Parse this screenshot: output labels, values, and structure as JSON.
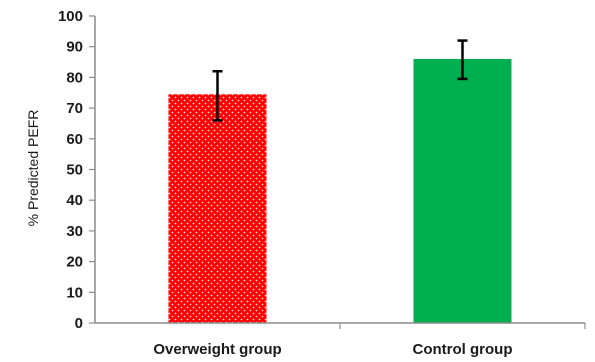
{
  "chart_data": {
    "type": "bar",
    "categories": [
      "Overweight group",
      "Control group"
    ],
    "values": [
      74.5,
      86
    ],
    "error_low": [
      66,
      79.5
    ],
    "error_high": [
      82,
      92
    ],
    "ylabel": "% Predicted PEFR",
    "xlabel": "",
    "ylim": [
      0,
      100
    ],
    "yticks": [
      "0",
      "10",
      "20",
      "30",
      "40",
      "50",
      "60",
      "70",
      "80",
      "90",
      "100"
    ],
    "grid": false,
    "colors": [
      "#ff0000",
      "#00b050"
    ],
    "patterns": [
      "dotted",
      "solid"
    ]
  }
}
